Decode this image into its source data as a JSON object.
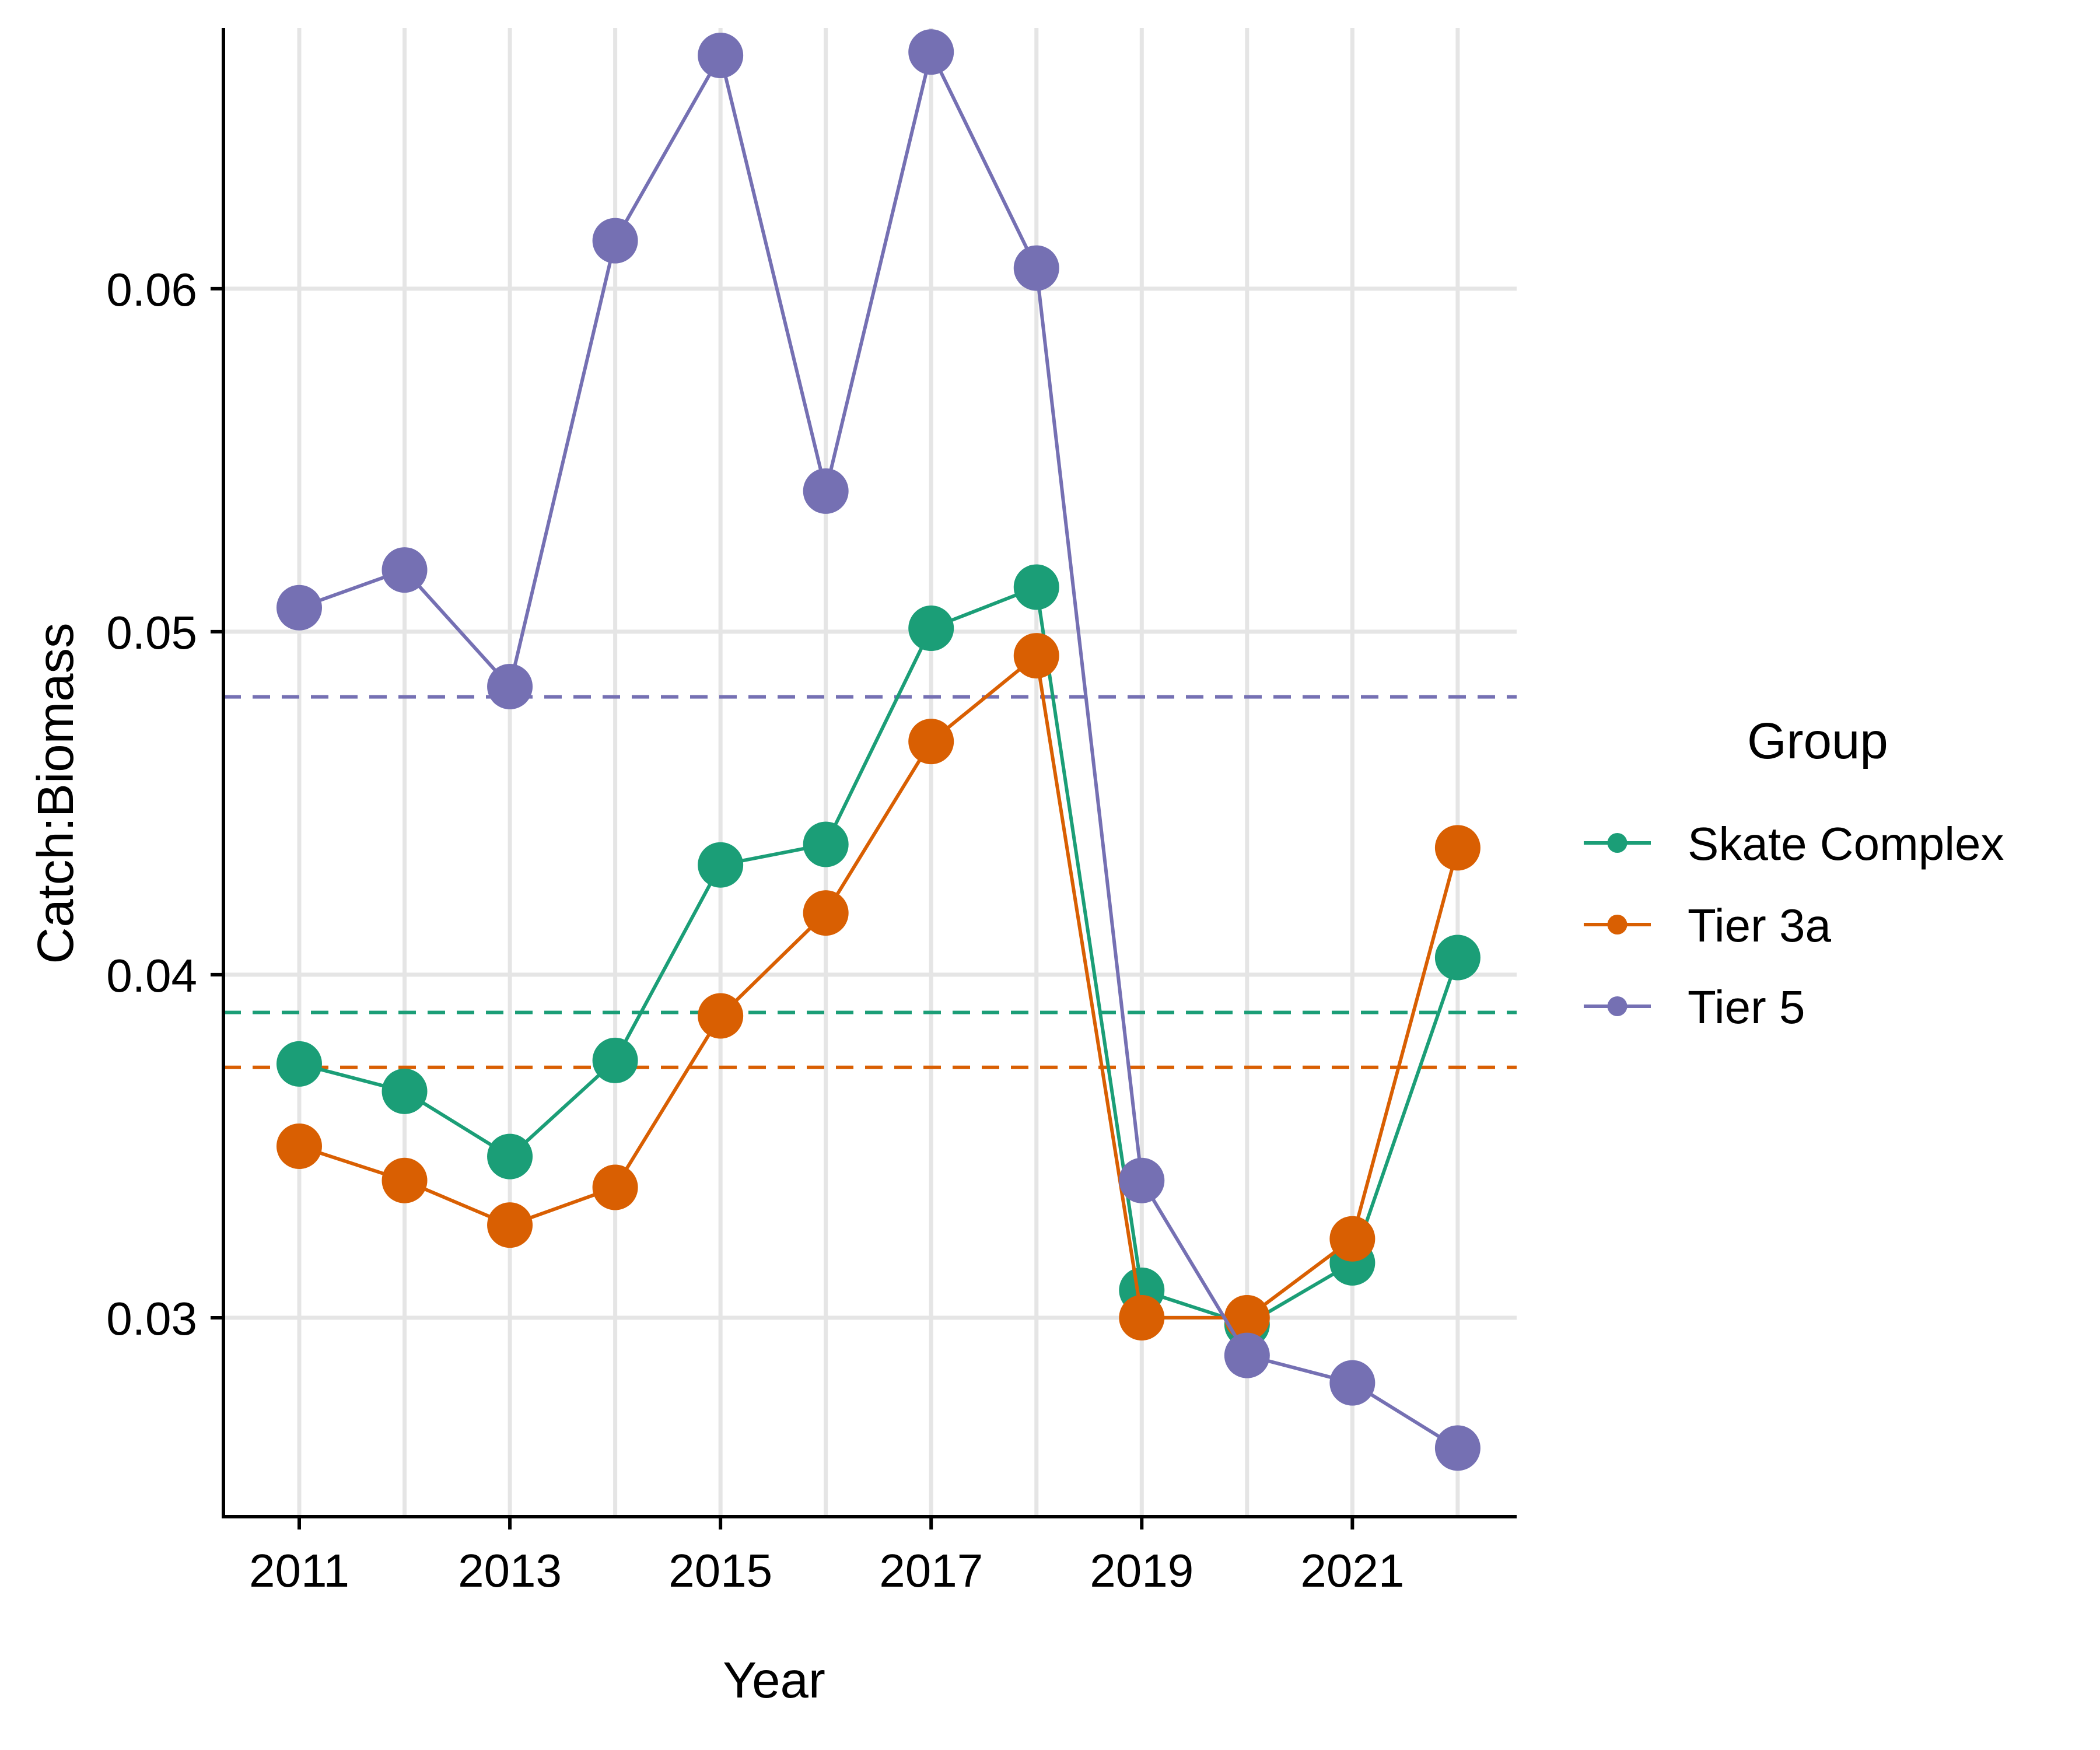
{
  "chart_data": {
    "type": "line",
    "title": "",
    "xlabel": "Year",
    "ylabel": "Catch:Biomass",
    "x": [
      2011,
      2012,
      2013,
      2014,
      2015,
      2016,
      2017,
      2018,
      2019,
      2020,
      2021,
      2022
    ],
    "xlim": [
      2010.28,
      2022.56
    ],
    "xticks": [
      2011,
      2013,
      2015,
      2017,
      2019,
      2021
    ],
    "xtick_labels": [
      "2011",
      "2013",
      "2015",
      "2017",
      "2019",
      "2021"
    ],
    "ylim": [
      0.0242,
      0.0676
    ],
    "yticks": [
      0.03,
      0.04,
      0.05,
      0.06
    ],
    "ytick_labels": [
      "0.03",
      "0.04",
      "0.05",
      "0.06"
    ],
    "grid": true,
    "legend_title": "Group",
    "legend_position": "right",
    "series": [
      {
        "name": "Skate Complex",
        "color": "#1B9E77",
        "values": [
          0.0374,
          0.0366,
          0.0347,
          0.0375,
          0.0432,
          0.0438,
          0.0501,
          0.0513,
          0.0308,
          0.0298,
          0.0316,
          0.0405
        ],
        "reference_line": 0.0389
      },
      {
        "name": "Tier 3a",
        "color": "#D95F02",
        "values": [
          0.035,
          0.034,
          0.0327,
          0.0338,
          0.0388,
          0.0418,
          0.0468,
          0.0493,
          0.03,
          0.03,
          0.0323,
          0.0437
        ],
        "reference_line": 0.0373
      },
      {
        "name": "Tier 5",
        "color": "#7570B3",
        "values": [
          0.0507,
          0.0518,
          0.0484,
          0.0614,
          0.0668,
          0.0541,
          0.0669,
          0.0606,
          0.034,
          0.0289,
          0.0281,
          0.0262
        ],
        "reference_line": 0.0481
      }
    ]
  }
}
